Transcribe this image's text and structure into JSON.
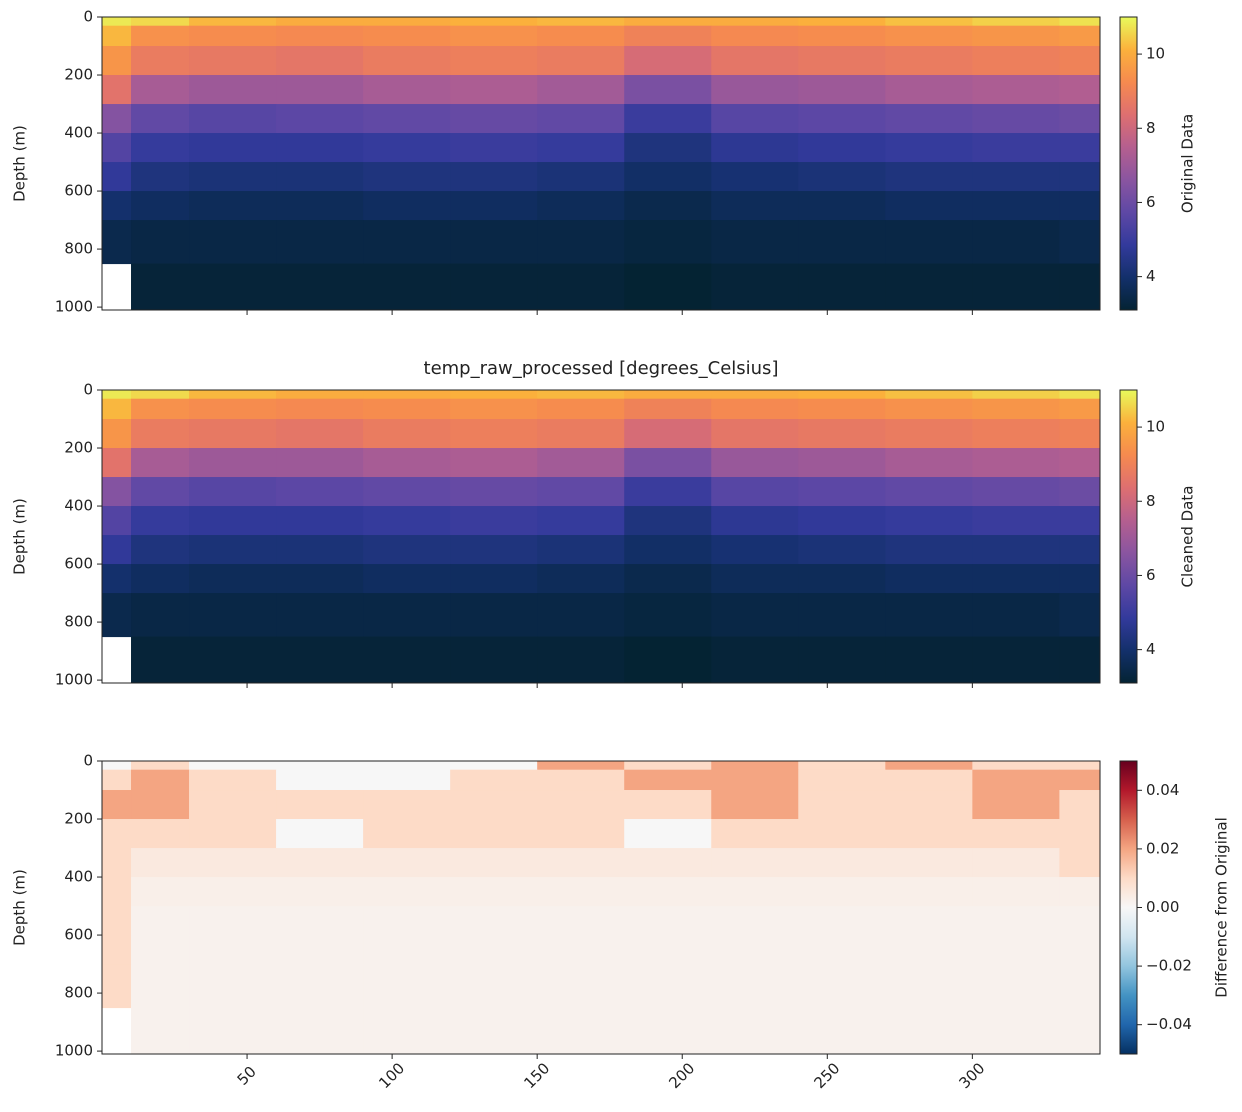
{
  "chart_data": [
    {
      "type": "heatmap",
      "ylabel": "Depth (m)",
      "colorbar_label": "Original Data",
      "colormap": [
        "#042333",
        "#13306b",
        "#333a9c",
        "#5e48a5",
        "#8a55a0",
        "#b55f8f",
        "#de6f70",
        "#f68a4f",
        "#fbb13c",
        "#e8fa5b"
      ],
      "x_edges": [
        0,
        10,
        30,
        60,
        90,
        120,
        150,
        180,
        210,
        240,
        270,
        300,
        330,
        344
      ],
      "y_edges": [
        0,
        30,
        100,
        200,
        300,
        400,
        500,
        600,
        700,
        850,
        1010
      ],
      "z": [
        [
          10.8,
          10.6,
          10.2,
          10.0,
          10.0,
          10.1,
          10.2,
          10.0,
          10.0,
          10.1,
          10.3,
          10.5,
          10.7
        ],
        [
          10.2,
          9.4,
          9.3,
          9.2,
          9.3,
          9.4,
          9.3,
          9.0,
          9.2,
          9.3,
          9.4,
          9.5,
          9.6
        ],
        [
          9.5,
          8.8,
          8.7,
          8.6,
          8.8,
          8.9,
          8.8,
          8.2,
          8.6,
          8.7,
          8.8,
          8.9,
          9.0
        ],
        [
          8.5,
          7.2,
          7.0,
          7.0,
          7.2,
          7.3,
          7.1,
          6.3,
          6.9,
          7.0,
          7.2,
          7.3,
          7.4
        ],
        [
          6.5,
          5.8,
          5.6,
          5.7,
          5.8,
          5.9,
          5.8,
          5.0,
          5.6,
          5.7,
          5.8,
          5.9,
          6.0
        ],
        [
          5.5,
          4.9,
          4.8,
          4.8,
          4.9,
          5.0,
          4.9,
          4.3,
          4.7,
          4.8,
          4.9,
          5.0,
          5.0
        ],
        [
          4.8,
          4.3,
          4.2,
          4.2,
          4.3,
          4.3,
          4.2,
          3.9,
          4.1,
          4.2,
          4.3,
          4.3,
          4.3
        ],
        [
          4.0,
          3.8,
          3.7,
          3.7,
          3.8,
          3.8,
          3.7,
          3.5,
          3.7,
          3.7,
          3.8,
          3.8,
          3.8
        ],
        [
          3.5,
          3.4,
          3.4,
          3.4,
          3.4,
          3.4,
          3.4,
          3.3,
          3.4,
          3.4,
          3.4,
          3.4,
          3.5
        ],
        [
          null,
          3.2,
          3.2,
          3.2,
          3.2,
          3.2,
          3.2,
          3.1,
          3.2,
          3.2,
          3.2,
          3.2,
          3.2
        ]
      ],
      "xlim": [
        0,
        344
      ],
      "ylim": [
        1010,
        0
      ],
      "xticks": [
        50,
        100,
        150,
        200,
        250,
        300
      ],
      "yticks": [
        0,
        200,
        400,
        600,
        800,
        1000
      ],
      "clim": [
        3.1,
        11
      ],
      "cticks": [
        4,
        6,
        8,
        10
      ]
    },
    {
      "type": "heatmap",
      "title": "temp_raw_processed [degrees_Celsius]",
      "ylabel": "Depth (m)",
      "colorbar_label": "Cleaned Data",
      "colormap": [
        "#042333",
        "#13306b",
        "#333a9c",
        "#5e48a5",
        "#8a55a0",
        "#b55f8f",
        "#de6f70",
        "#f68a4f",
        "#fbb13c",
        "#e8fa5b"
      ],
      "x_edges": [
        0,
        10,
        30,
        60,
        90,
        120,
        150,
        180,
        210,
        240,
        270,
        300,
        330,
        344
      ],
      "y_edges": [
        0,
        30,
        100,
        200,
        300,
        400,
        500,
        600,
        700,
        850,
        1010
      ],
      "z": [
        [
          10.8,
          10.6,
          10.2,
          10.0,
          10.0,
          10.1,
          10.2,
          10.0,
          10.0,
          10.1,
          10.3,
          10.5,
          10.7
        ],
        [
          10.2,
          9.4,
          9.3,
          9.2,
          9.3,
          9.4,
          9.3,
          9.0,
          9.2,
          9.3,
          9.4,
          9.5,
          9.6
        ],
        [
          9.5,
          8.8,
          8.7,
          8.6,
          8.8,
          8.9,
          8.8,
          8.2,
          8.6,
          8.7,
          8.8,
          8.9,
          9.0
        ],
        [
          8.5,
          7.2,
          7.0,
          7.0,
          7.2,
          7.3,
          7.1,
          6.3,
          6.9,
          7.0,
          7.2,
          7.3,
          7.4
        ],
        [
          6.5,
          5.8,
          5.6,
          5.7,
          5.8,
          5.9,
          5.8,
          5.0,
          5.6,
          5.7,
          5.8,
          5.9,
          6.0
        ],
        [
          5.5,
          4.9,
          4.8,
          4.8,
          4.9,
          5.0,
          4.9,
          4.3,
          4.7,
          4.8,
          4.9,
          5.0,
          5.0
        ],
        [
          4.8,
          4.3,
          4.2,
          4.2,
          4.3,
          4.3,
          4.2,
          3.9,
          4.1,
          4.2,
          4.3,
          4.3,
          4.3
        ],
        [
          4.0,
          3.8,
          3.7,
          3.7,
          3.8,
          3.8,
          3.7,
          3.5,
          3.7,
          3.7,
          3.8,
          3.8,
          3.8
        ],
        [
          3.5,
          3.4,
          3.4,
          3.4,
          3.4,
          3.4,
          3.4,
          3.3,
          3.4,
          3.4,
          3.4,
          3.4,
          3.5
        ],
        [
          null,
          3.2,
          3.2,
          3.2,
          3.2,
          3.2,
          3.2,
          3.1,
          3.2,
          3.2,
          3.2,
          3.2,
          3.2
        ]
      ],
      "xlim": [
        0,
        344
      ],
      "ylim": [
        1010,
        0
      ],
      "xticks": [
        50,
        100,
        150,
        200,
        250,
        300
      ],
      "yticks": [
        0,
        200,
        400,
        600,
        800,
        1000
      ],
      "clim": [
        3.1,
        11
      ],
      "cticks": [
        4,
        6,
        8,
        10
      ]
    },
    {
      "type": "heatmap",
      "ylabel": "Depth (m)",
      "colorbar_label": "Difference from Original",
      "colormap": [
        "#053061",
        "#2166ac",
        "#4393c3",
        "#92c5de",
        "#d1e5f0",
        "#f7f7f7",
        "#fddbc7",
        "#f4a582",
        "#d6604d",
        "#b2182b",
        "#67001f"
      ],
      "x_edges": [
        0,
        10,
        30,
        60,
        90,
        120,
        150,
        180,
        210,
        240,
        270,
        300,
        330,
        344
      ],
      "y_edges": [
        0,
        30,
        100,
        200,
        300,
        400,
        500,
        600,
        700,
        850,
        1010
      ],
      "z": [
        [
          0,
          0.01,
          0,
          0,
          0,
          0,
          0.02,
          0.01,
          0.02,
          0.01,
          0.02,
          0.01,
          0.01
        ],
        [
          0.01,
          0.02,
          0.01,
          0,
          0,
          0.01,
          0.01,
          0.02,
          0.02,
          0.01,
          0.01,
          0.02,
          0.02
        ],
        [
          0.02,
          0.02,
          0.01,
          0.01,
          0.01,
          0.01,
          0.01,
          0.01,
          0.02,
          0.01,
          0.01,
          0.02,
          0.01
        ],
        [
          0.01,
          0.01,
          0.01,
          0,
          0.01,
          0.01,
          0.01,
          0,
          0.01,
          0.01,
          0.01,
          0.01,
          0.01
        ],
        [
          0.01,
          0.005,
          0.005,
          0.005,
          0.005,
          0.005,
          0.005,
          0.005,
          0.005,
          0.005,
          0.005,
          0.005,
          0.01
        ],
        [
          0.01,
          0.003,
          0.003,
          0.003,
          0.003,
          0.003,
          0.003,
          0.003,
          0.003,
          0.003,
          0.003,
          0.003,
          0.003
        ],
        [
          0.01,
          0.002,
          0.002,
          0.002,
          0.002,
          0.002,
          0.002,
          0.002,
          0.002,
          0.002,
          0.002,
          0.002,
          0.002
        ],
        [
          0.01,
          0.002,
          0.002,
          0.002,
          0.002,
          0.002,
          0.002,
          0.002,
          0.002,
          0.002,
          0.002,
          0.002,
          0.002
        ],
        [
          0.01,
          0.002,
          0.002,
          0.002,
          0.002,
          0.002,
          0.002,
          0.002,
          0.002,
          0.002,
          0.002,
          0.002,
          0.002
        ],
        [
          null,
          0.002,
          0.002,
          0.002,
          0.002,
          0.002,
          0.002,
          0.002,
          0.002,
          0.002,
          0.002,
          0.002,
          0.002
        ]
      ],
      "xlim": [
        0,
        344
      ],
      "ylim": [
        1010,
        0
      ],
      "xticks": [
        50,
        100,
        150,
        200,
        250,
        300
      ],
      "yticks": [
        0,
        200,
        400,
        600,
        800,
        1000
      ],
      "clim": [
        -0.05,
        0.05
      ],
      "cticks": [
        {
          "value": -0.04,
          "label": "−0.04"
        },
        {
          "value": -0.02,
          "label": "−0.02"
        },
        {
          "value": 0,
          "label": "0.00"
        },
        0.02,
        0.04
      ]
    }
  ]
}
